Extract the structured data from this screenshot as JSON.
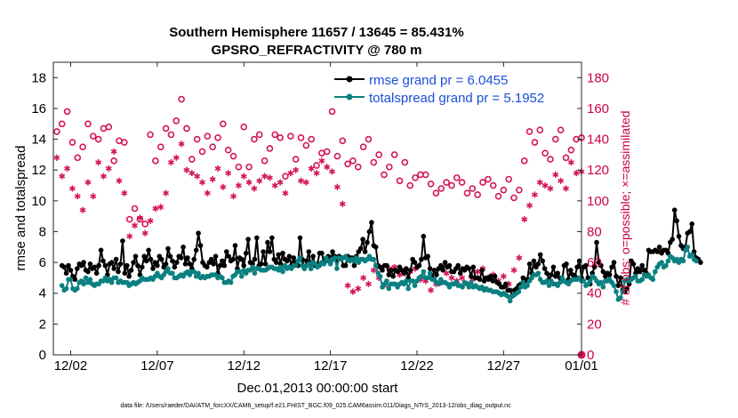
{
  "chart_data": {
    "type": "line",
    "title": "Southern Hemisphere 11657 / 13645 = 85.431%",
    "subtitle": "GPSRO_REFRACTIVITY @ 780 m",
    "xlabel": "Dec.01,2013 00:00:00 start",
    "ylabel": "rmse and totalspread",
    "y2label": "# of obs: o=possible; ×=assimilated",
    "footer": "data file: /Users/raeder/DAI/ATM_forcXX/CAM6_setup/f.e21.FHIST_BGC.f09_025.CAM6assim.011/Diags_NTrS_2013-12/obs_diag_output.nc",
    "xlim": [
      0.5,
      31.0
    ],
    "ylim": [
      0,
      19
    ],
    "y2lim": [
      0,
      190
    ],
    "yticks": [
      0,
      2,
      4,
      6,
      8,
      10,
      12,
      14,
      16,
      18
    ],
    "y2ticks": [
      0,
      20,
      40,
      60,
      80,
      100,
      120,
      140,
      160,
      180
    ],
    "xticks": [
      1.5,
      6.5,
      11.5,
      16.5,
      21.5,
      26.5,
      31.0
    ],
    "xticklabels": [
      "12/02",
      "12/07",
      "12/12",
      "12/17",
      "12/22",
      "12/27",
      "01/01"
    ],
    "colors": {
      "rmse": "#000000",
      "spread": "#0b8080",
      "obs": "#d4145a",
      "legend_text": "#1a4fd8",
      "right_axis": "#cc0044"
    },
    "x_step_days": 0.125,
    "series": [
      {
        "name": "rmse grand pr = 6.0455",
        "values": [
          5.8,
          5.7,
          5.3,
          5.8,
          5.5,
          5.1,
          4.9,
          5.6,
          5.9,
          5.8,
          6.0,
          5.5,
          5.4,
          5.9,
          5.6,
          5.7,
          5.3,
          5.8,
          6.8,
          6.1,
          5.8,
          5.2,
          5.9,
          6.0,
          5.6,
          6.2,
          5.4,
          5.9,
          7.4,
          5.3,
          5.8,
          5.1,
          5.5,
          6.0,
          6.4,
          5.8,
          5.2,
          5.7,
          6.4,
          6.1,
          6.8,
          6.2,
          5.6,
          6.0,
          5.8,
          6.4,
          6.2,
          5.7,
          5.9,
          6.9,
          6.4,
          6.1,
          5.7,
          6.0,
          6.4,
          6.3,
          7.0,
          5.9,
          6.3,
          5.9,
          5.6,
          6.2,
          6.8,
          7.9,
          7.1,
          6.0,
          5.8,
          5.7,
          6.0,
          6.2,
          5.9,
          6.4,
          5.3,
          5.8,
          6.1,
          5.8,
          6.7,
          6.4,
          6.1,
          6.2,
          7.1,
          5.6,
          6.3,
          6.2,
          5.8,
          6.6,
          7.5,
          6.0,
          5.9,
          6.2,
          7.6,
          5.8,
          5.9,
          6.7,
          5.9,
          7.3,
          6.7,
          7.6,
          6.2,
          6.0,
          6.5,
          5.9,
          6.6,
          6.2,
          6.1,
          6.4,
          5.8,
          6.3,
          6.0,
          5.8,
          7.6,
          6.2,
          5.6,
          6.1,
          6.7,
          5.6,
          6.4,
          5.8,
          5.9,
          6.6,
          6.6,
          6.0,
          6.1,
          6.4,
          6.0,
          6.7,
          6.4,
          6.1,
          6.4,
          6.3,
          5.8,
          5.8,
          6.4,
          6.3,
          6.3,
          5.8,
          6.4,
          6.7,
          6.9,
          7.5,
          6.7,
          7.3,
          8.0,
          8.6,
          7.1,
          7.0,
          5.8,
          5.7,
          5.5,
          5.8,
          5.8,
          5.2,
          5.5,
          5.1,
          5.5,
          5.4,
          5.7,
          5.5,
          5.3,
          5.6,
          5.0,
          5.5,
          6.2,
          6.0,
          5.7,
          5.8,
          6.2,
          7.7,
          6.3,
          6.4,
          5.6,
          5.0,
          5.5,
          5.2,
          5.6,
          5.8,
          5.5,
          6.0,
          5.7,
          5.8,
          5.4,
          5.4,
          5.6,
          5.8,
          5.3,
          5.6,
          5.5,
          5.7,
          5.6,
          5.1,
          5.7,
          5.0,
          5.0,
          4.9,
          5.5,
          4.8,
          5.0,
          4.9,
          5.1,
          4.8,
          5.1,
          4.7,
          4.6,
          4.4,
          4.4,
          4.6,
          4.2,
          4.2,
          3.8,
          4.2,
          4.3,
          4.5,
          4.6,
          5.0,
          4.8,
          4.9,
          5.9,
          5.3,
          6.1,
          5.7,
          5.9,
          6.5,
          6.1,
          5.6,
          5.3,
          4.9,
          5.2,
          5.7,
          5.1,
          5.3,
          5.0,
          4.8,
          5.8,
          5.9,
          4.9,
          5.5,
          5.2,
          5.1,
          5.7,
          6.1,
          5.0,
          5.7,
          5.8,
          5.0,
          4.6,
          5.3,
          5.7,
          7.3,
          6.0,
          5.8,
          5.4,
          5.1,
          5.3,
          5.2,
          5.7,
          6.0,
          5.1,
          4.5,
          5.0,
          4.2,
          4.1,
          4.3,
          4.6,
          6.1,
          5.9,
          5.3,
          5.6,
          5.4,
          5.8,
          5.5,
          5.3,
          6.8,
          6.7,
          6.7,
          6.8,
          6.7,
          7.0,
          6.6,
          6.8,
          6.8,
          6.6,
          7.3,
          7.5,
          9.4,
          8.7,
          7.7,
          7.1,
          6.9,
          7.0,
          7.9,
          8.0,
          8.5,
          6.7,
          6.3,
          6.2,
          6.0
        ]
      },
      {
        "name": "totalspread grand pr = 5.1952",
        "values": [
          4.5,
          4.2,
          4.3,
          4.9,
          4.9,
          4.3,
          4.2,
          4.3,
          4.7,
          4.8,
          4.6,
          5.0,
          4.7,
          4.9,
          4.6,
          4.5,
          4.6,
          4.6,
          4.8,
          4.8,
          5.0,
          4.8,
          4.9,
          4.7,
          5.0,
          5.0,
          4.7,
          4.8,
          4.7,
          4.7,
          4.7,
          4.5,
          4.6,
          4.7,
          4.6,
          4.7,
          4.8,
          5.0,
          4.9,
          4.9,
          4.9,
          5.0,
          4.9,
          5.1,
          5.3,
          5.1,
          5.0,
          5.2,
          5.4,
          5.6,
          5.3,
          5.3,
          5.0,
          5.0,
          5.1,
          5.2,
          5.1,
          5.3,
          5.4,
          5.2,
          5.4,
          5.4,
          5.1,
          5.3,
          5.0,
          5.1,
          5.0,
          5.1,
          5.1,
          5.2,
          5.2,
          5.2,
          5.0,
          5.1,
          5.0,
          4.7,
          4.7,
          4.8,
          4.7,
          5.1,
          5.2,
          5.4,
          5.4,
          5.1,
          5.5,
          5.3,
          5.5,
          5.5,
          5.7,
          5.3,
          5.6,
          5.6,
          5.5,
          5.5,
          5.5,
          5.6,
          5.7,
          5.7,
          5.6,
          5.6,
          5.5,
          5.7,
          5.4,
          5.8,
          5.6,
          5.7,
          5.6,
          5.8,
          5.8,
          6.1,
          6.3,
          5.8,
          5.6,
          5.8,
          5.9,
          5.6,
          6.0,
          5.9,
          5.7,
          5.8,
          6.0,
          5.9,
          6.3,
          6.1,
          5.9,
          6.2,
          6.3,
          5.6,
          6.3,
          6.2,
          6.3,
          6.4,
          6.2,
          6.1,
          6.2,
          6.1,
          6.3,
          6.0,
          6.2,
          6.2,
          6.1,
          6.2,
          6.4,
          6.2,
          6.2,
          5.8,
          5.3,
          5.1,
          4.4,
          4.6,
          4.8,
          4.3,
          4.6,
          4.6,
          4.6,
          4.4,
          4.6,
          4.7,
          4.6,
          4.8,
          4.3,
          4.8,
          4.8,
          4.5,
          4.8,
          5.0,
          5.1,
          5.4,
          5.0,
          5.0,
          5.3,
          4.9,
          4.9,
          4.7,
          4.6,
          4.9,
          4.7,
          4.7,
          4.6,
          4.4,
          4.6,
          4.6,
          4.7,
          4.5,
          4.5,
          4.4,
          4.7,
          4.6,
          4.4,
          4.7,
          4.4,
          4.5,
          4.4,
          4.3,
          4.4,
          4.2,
          4.3,
          4.2,
          4.2,
          4.1,
          4.1,
          4.1,
          4.0,
          3.9,
          4.0,
          3.9,
          3.8,
          3.5,
          3.8,
          3.9,
          4.0,
          4.1,
          4.4,
          4.7,
          4.4,
          4.5,
          4.8,
          5.0,
          5.2,
          5.2,
          5.3,
          4.9,
          4.7,
          4.7,
          4.8,
          4.5,
          4.8,
          4.6,
          4.6,
          4.5,
          4.7,
          5.0,
          4.8,
          4.7,
          4.6,
          4.8,
          4.9,
          4.9,
          4.9,
          5.0,
          4.8,
          4.8,
          4.5,
          4.6,
          4.8,
          5.1,
          5.0,
          4.8,
          4.6,
          4.7,
          4.4,
          4.8,
          4.8,
          4.9,
          4.7,
          4.5,
          4.1,
          3.6,
          3.7,
          4.1,
          4.8,
          4.9,
          4.8,
          4.9,
          5.0,
          5.1,
          4.8,
          4.8,
          4.9,
          5.2,
          5.1,
          5.2,
          5.0,
          4.9,
          5.4,
          5.7,
          5.9,
          6.0,
          5.7,
          5.8,
          6.1,
          6.4,
          6.3,
          6.1,
          6.2,
          6.0,
          6.2,
          6.1,
          6.8,
          7.0,
          6.4,
          6.5,
          6.2,
          6.1
        ]
      }
    ],
    "obs_possible": [
      [
        0.7,
        145
      ],
      [
        1.0,
        150
      ],
      [
        1.3,
        158
      ],
      [
        1.6,
        138
      ],
      [
        1.9,
        128
      ],
      [
        2.2,
        135
      ],
      [
        2.5,
        150
      ],
      [
        2.8,
        142
      ],
      [
        3.1,
        140
      ],
      [
        3.4,
        147
      ],
      [
        3.7,
        148
      ],
      [
        4.0,
        126
      ],
      [
        4.3,
        139
      ],
      [
        4.6,
        138
      ],
      [
        4.9,
        88
      ],
      [
        5.2,
        95
      ],
      [
        5.5,
        88
      ],
      [
        5.8,
        85
      ],
      [
        6.1,
        143
      ],
      [
        6.4,
        126
      ],
      [
        6.7,
        135
      ],
      [
        7.0,
        147
      ],
      [
        7.3,
        143
      ],
      [
        7.6,
        152
      ],
      [
        7.9,
        166
      ],
      [
        8.2,
        147
      ],
      [
        8.5,
        127
      ],
      [
        8.8,
        140
      ],
      [
        9.1,
        132
      ],
      [
        9.4,
        142
      ],
      [
        9.7,
        135
      ],
      [
        10.0,
        141
      ],
      [
        10.3,
        150
      ],
      [
        10.6,
        133
      ],
      [
        10.9,
        129
      ],
      [
        11.2,
        122
      ],
      [
        11.5,
        148
      ],
      [
        11.8,
        122
      ],
      [
        12.1,
        140
      ],
      [
        12.4,
        143
      ],
      [
        12.7,
        126
      ],
      [
        13.0,
        134
      ],
      [
        13.3,
        143
      ],
      [
        13.6,
        141
      ],
      [
        13.9,
        116
      ],
      [
        14.2,
        142
      ],
      [
        14.5,
        127
      ],
      [
        14.8,
        141
      ],
      [
        15.1,
        136
      ],
      [
        15.4,
        140
      ],
      [
        15.7,
        123
      ],
      [
        16.0,
        131
      ],
      [
        16.3,
        132
      ],
      [
        16.6,
        158
      ],
      [
        16.9,
        129
      ],
      [
        17.2,
        139
      ],
      [
        17.5,
        124
      ],
      [
        17.8,
        126
      ],
      [
        18.1,
        122
      ],
      [
        18.4,
        135
      ],
      [
        18.7,
        140
      ],
      [
        19.0,
        125
      ],
      [
        19.3,
        130
      ],
      [
        19.6,
        117
      ],
      [
        19.9,
        122
      ],
      [
        20.2,
        130
      ],
      [
        20.5,
        113
      ],
      [
        20.8,
        125
      ],
      [
        21.1,
        110
      ],
      [
        21.4,
        115
      ],
      [
        21.7,
        117
      ],
      [
        22.0,
        117
      ],
      [
        22.3,
        111
      ],
      [
        22.6,
        105
      ],
      [
        22.9,
        108
      ],
      [
        23.2,
        112
      ],
      [
        23.5,
        110
      ],
      [
        23.8,
        115
      ],
      [
        24.1,
        112
      ],
      [
        24.4,
        105
      ],
      [
        24.7,
        108
      ],
      [
        25.0,
        104
      ],
      [
        25.3,
        112
      ],
      [
        25.6,
        114
      ],
      [
        25.9,
        110
      ],
      [
        26.2,
        103
      ],
      [
        26.5,
        107
      ],
      [
        26.8,
        114
      ],
      [
        27.1,
        102
      ],
      [
        27.4,
        107
      ],
      [
        27.7,
        126
      ],
      [
        28.0,
        145
      ],
      [
        28.3,
        138
      ],
      [
        28.6,
        146
      ],
      [
        28.9,
        131
      ],
      [
        29.2,
        127
      ],
      [
        29.5,
        140
      ],
      [
        29.8,
        146
      ],
      [
        30.1,
        128
      ],
      [
        30.4,
        133
      ],
      [
        30.7,
        140
      ],
      [
        31.0,
        141
      ]
    ],
    "obs_assimilated": [
      [
        0.7,
        128
      ],
      [
        1.0,
        116
      ],
      [
        1.3,
        121
      ],
      [
        1.6,
        108
      ],
      [
        1.9,
        103
      ],
      [
        2.2,
        94
      ],
      [
        2.5,
        112
      ],
      [
        2.8,
        103
      ],
      [
        3.1,
        125
      ],
      [
        3.4,
        116
      ],
      [
        3.7,
        121
      ],
      [
        4.0,
        132
      ],
      [
        4.3,
        113
      ],
      [
        4.6,
        105
      ],
      [
        4.9,
        77
      ],
      [
        5.2,
        84
      ],
      [
        5.5,
        89
      ],
      [
        5.8,
        79
      ],
      [
        6.1,
        87
      ],
      [
        6.4,
        95
      ],
      [
        6.7,
        96
      ],
      [
        7.0,
        105
      ],
      [
        7.3,
        125
      ],
      [
        7.6,
        128
      ],
      [
        7.9,
        137
      ],
      [
        8.2,
        120
      ],
      [
        8.5,
        118
      ],
      [
        8.8,
        116
      ],
      [
        9.1,
        112
      ],
      [
        9.4,
        105
      ],
      [
        9.7,
        114
      ],
      [
        10.0,
        121
      ],
      [
        10.3,
        109
      ],
      [
        10.6,
        118
      ],
      [
        10.9,
        103
      ],
      [
        11.2,
        110
      ],
      [
        11.5,
        116
      ],
      [
        11.8,
        112
      ],
      [
        12.1,
        108
      ],
      [
        12.4,
        113
      ],
      [
        12.7,
        116
      ],
      [
        13.0,
        115
      ],
      [
        13.3,
        110
      ],
      [
        13.6,
        112
      ],
      [
        13.9,
        105
      ],
      [
        14.2,
        118
      ],
      [
        14.5,
        120
      ],
      [
        14.8,
        113
      ],
      [
        15.1,
        112
      ],
      [
        15.4,
        121
      ],
      [
        15.7,
        118
      ],
      [
        16.0,
        126
      ],
      [
        16.3,
        122
      ],
      [
        16.6,
        119
      ],
      [
        16.9,
        109
      ],
      [
        17.2,
        98
      ],
      [
        17.5,
        45
      ],
      [
        17.8,
        41
      ],
      [
        18.1,
        43
      ],
      [
        18.4,
        50
      ],
      [
        18.7,
        46
      ],
      [
        19.0,
        55
      ],
      [
        19.3,
        50
      ],
      [
        19.6,
        45
      ],
      [
        19.9,
        56
      ],
      [
        20.2,
        57
      ],
      [
        20.5,
        52
      ],
      [
        20.8,
        53
      ],
      [
        21.1,
        54
      ],
      [
        21.4,
        56
      ],
      [
        21.7,
        49
      ],
      [
        22.0,
        48
      ],
      [
        22.3,
        42
      ],
      [
        22.6,
        46
      ],
      [
        22.9,
        47
      ],
      [
        23.2,
        53
      ],
      [
        23.5,
        50
      ],
      [
        23.8,
        48
      ],
      [
        24.1,
        50
      ],
      [
        24.4,
        46
      ],
      [
        24.7,
        49
      ],
      [
        25.0,
        54
      ],
      [
        25.3,
        56
      ],
      [
        25.6,
        50
      ],
      [
        25.9,
        52
      ],
      [
        26.2,
        48
      ],
      [
        26.5,
        51
      ],
      [
        26.8,
        46
      ],
      [
        27.1,
        55
      ],
      [
        27.4,
        63
      ],
      [
        27.7,
        88
      ],
      [
        28.0,
        97
      ],
      [
        28.3,
        104
      ],
      [
        28.6,
        112
      ],
      [
        28.9,
        110
      ],
      [
        29.2,
        108
      ],
      [
        29.5,
        117
      ],
      [
        29.8,
        113
      ],
      [
        30.1,
        108
      ],
      [
        30.4,
        125
      ],
      [
        30.7,
        118
      ],
      [
        31.0,
        119
      ]
    ]
  }
}
